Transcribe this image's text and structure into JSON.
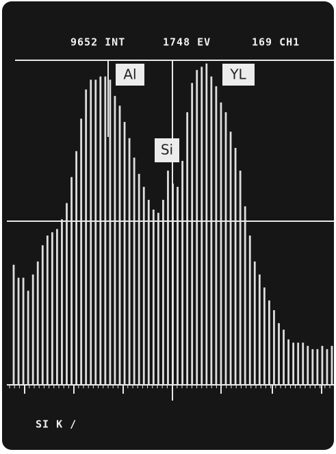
{
  "chart_data": {
    "type": "bar",
    "status": [
      "9652 INT",
      "1748 EV",
      "169 CH1"
    ],
    "annotations": [
      "Al",
      "Si",
      "YL"
    ],
    "footer": "SI K /",
    "values": [
      37,
      33,
      33,
      29,
      34,
      38,
      43,
      46,
      47,
      48,
      51,
      56,
      64,
      72,
      82,
      91,
      94,
      94,
      95,
      95,
      94,
      89,
      86,
      81,
      76,
      70,
      65,
      61,
      57,
      54,
      53,
      57,
      66,
      62,
      61,
      69,
      84,
      93,
      97,
      98,
      99,
      95,
      92,
      87,
      84,
      78,
      73,
      66,
      55,
      46,
      38,
      34,
      30,
      26,
      23,
      19,
      17,
      14,
      13,
      13,
      13,
      12,
      11,
      11,
      12,
      11,
      12
    ],
    "color": "#dedede",
    "ylim": [
      0,
      100
    ]
  }
}
